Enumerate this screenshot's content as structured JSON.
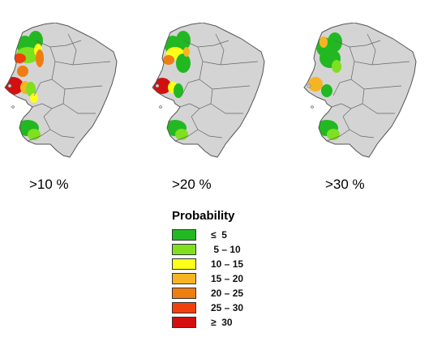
{
  "panels": [
    {
      "label": ">10 %",
      "zones": [
        {
          "class": 0,
          "x": 27,
          "y": 28,
          "rx": 10,
          "ry": 12
        },
        {
          "class": 0,
          "x": 40,
          "y": 22,
          "rx": 9,
          "ry": 12
        },
        {
          "class": 1,
          "x": 30,
          "y": 40,
          "rx": 14,
          "ry": 10
        },
        {
          "class": 2,
          "x": 43,
          "y": 34,
          "rx": 5,
          "ry": 8
        },
        {
          "class": 4,
          "x": 45,
          "y": 44,
          "rx": 5,
          "ry": 11
        },
        {
          "class": 5,
          "x": 20,
          "y": 44,
          "rx": 8,
          "ry": 6
        },
        {
          "class": 4,
          "x": 24,
          "y": 60,
          "rx": 7,
          "ry": 7
        },
        {
          "class": 6,
          "x": 12,
          "y": 78,
          "rx": 13,
          "ry": 11
        },
        {
          "class": 3,
          "x": 27,
          "y": 80,
          "rx": 6,
          "ry": 8
        },
        {
          "class": 1,
          "x": 34,
          "y": 82,
          "rx": 6,
          "ry": 9
        },
        {
          "class": 2,
          "x": 38,
          "y": 93,
          "rx": 5,
          "ry": 6
        },
        {
          "class": 0,
          "x": 30,
          "y": 130,
          "rx": 14,
          "ry": 10
        },
        {
          "class": 1,
          "x": 38,
          "y": 138,
          "rx": 8,
          "ry": 7
        }
      ]
    },
    {
      "label": ">20 %",
      "zones": [
        {
          "class": 0,
          "x": 27,
          "y": 28,
          "rx": 10,
          "ry": 12
        },
        {
          "class": 0,
          "x": 40,
          "y": 22,
          "rx": 9,
          "ry": 12
        },
        {
          "class": 2,
          "x": 30,
          "y": 38,
          "rx": 11,
          "ry": 8
        },
        {
          "class": 0,
          "x": 40,
          "y": 50,
          "rx": 9,
          "ry": 12
        },
        {
          "class": 4,
          "x": 22,
          "y": 46,
          "rx": 7,
          "ry": 6
        },
        {
          "class": 3,
          "x": 44,
          "y": 36,
          "rx": 4,
          "ry": 6
        },
        {
          "class": 6,
          "x": 14,
          "y": 78,
          "rx": 11,
          "ry": 10
        },
        {
          "class": 2,
          "x": 27,
          "y": 80,
          "rx": 6,
          "ry": 7
        },
        {
          "class": 0,
          "x": 34,
          "y": 84,
          "rx": 6,
          "ry": 9
        },
        {
          "class": 0,
          "x": 30,
          "y": 130,
          "rx": 14,
          "ry": 10
        },
        {
          "class": 1,
          "x": 38,
          "y": 138,
          "rx": 8,
          "ry": 7
        }
      ]
    },
    {
      "label": ">30 %",
      "zones": [
        {
          "class": 0,
          "x": 27,
          "y": 30,
          "rx": 10,
          "ry": 12
        },
        {
          "class": 0,
          "x": 40,
          "y": 24,
          "rx": 9,
          "ry": 12
        },
        {
          "class": 3,
          "x": 26,
          "y": 24,
          "rx": 5,
          "ry": 7
        },
        {
          "class": 0,
          "x": 34,
          "y": 44,
          "rx": 13,
          "ry": 12
        },
        {
          "class": 1,
          "x": 42,
          "y": 54,
          "rx": 6,
          "ry": 8
        },
        {
          "class": 3,
          "x": 16,
          "y": 76,
          "rx": 9,
          "ry": 9
        },
        {
          "class": 0,
          "x": 30,
          "y": 84,
          "rx": 7,
          "ry": 8
        },
        {
          "class": 0,
          "x": 30,
          "y": 130,
          "rx": 14,
          "ry": 10
        },
        {
          "class": 1,
          "x": 38,
          "y": 138,
          "rx": 8,
          "ry": 7
        }
      ]
    }
  ],
  "legend": {
    "title": "Probability",
    "items": [
      {
        "label": "≤  5",
        "color": "#22b822"
      },
      {
        "label": " 5 – 10",
        "color": "#7ee01f"
      },
      {
        "label": "10 – 15",
        "color": "#ffff1a"
      },
      {
        "label": "15 – 20",
        "color": "#f5b522"
      },
      {
        "label": "20 – 25",
        "color": "#f07d10"
      },
      {
        "label": "25 – 30",
        "color": "#f2400c"
      },
      {
        "label": "≥  30",
        "color": "#d40f0f"
      }
    ]
  }
}
